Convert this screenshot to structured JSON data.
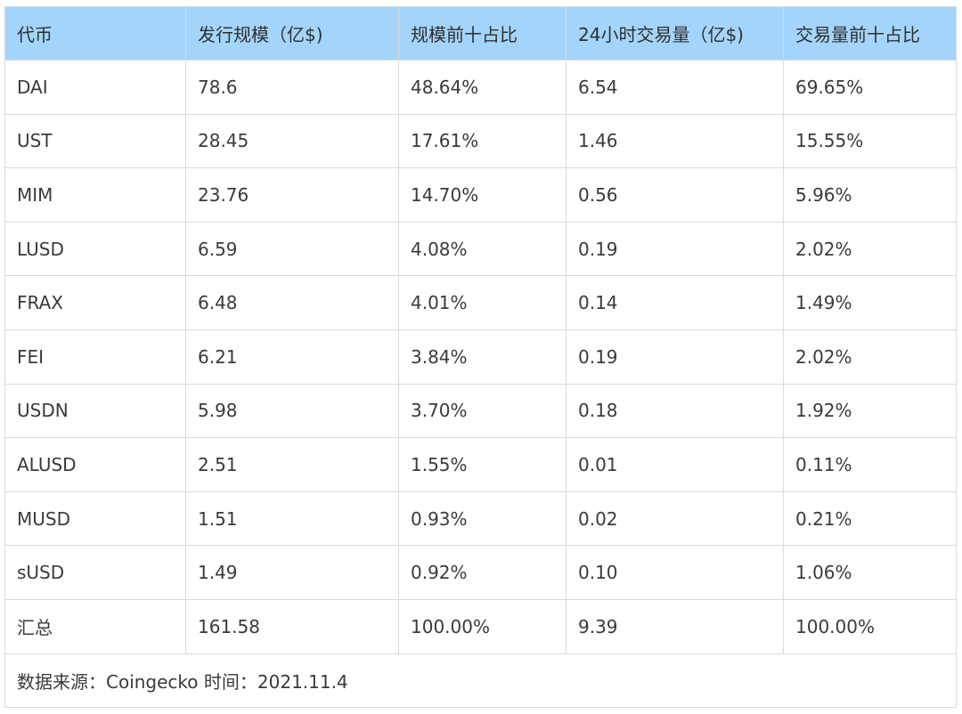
{
  "table": {
    "headers": [
      "代币",
      "发行规模（亿$)",
      "规模前十占比",
      "24小时交易量（亿$)",
      "交易量前十占比"
    ],
    "rows": [
      [
        "DAI",
        "78.6",
        "48.64%",
        "6.54",
        "69.65%"
      ],
      [
        "UST",
        "28.45",
        "17.61%",
        "1.46",
        "15.55%"
      ],
      [
        "MIM",
        "23.76",
        "14.70%",
        "0.56",
        "5.96%"
      ],
      [
        "LUSD",
        "6.59",
        "4.08%",
        "0.19",
        "2.02%"
      ],
      [
        "FRAX",
        "6.48",
        "4.01%",
        "0.14",
        "1.49%"
      ],
      [
        "FEI",
        "6.21",
        "3.84%",
        "0.19",
        "2.02%"
      ],
      [
        "USDN",
        "5.98",
        "3.70%",
        "0.18",
        "1.92%"
      ],
      [
        "ALUSD",
        "2.51",
        "1.55%",
        "0.01",
        "0.11%"
      ],
      [
        "MUSD",
        "1.51",
        "0.93%",
        "0.02",
        "0.21%"
      ],
      [
        "sUSD",
        "1.49",
        "0.92%",
        "0.10",
        "1.06%"
      ],
      [
        "汇总",
        "161.58",
        "100.00%",
        "9.39",
        "100.00%"
      ]
    ],
    "footnote": "数据来源：Coingecko 时间：2021.11.4"
  },
  "colors": {
    "header_background": "#a3d5fc",
    "border": "#d9d9d9"
  }
}
